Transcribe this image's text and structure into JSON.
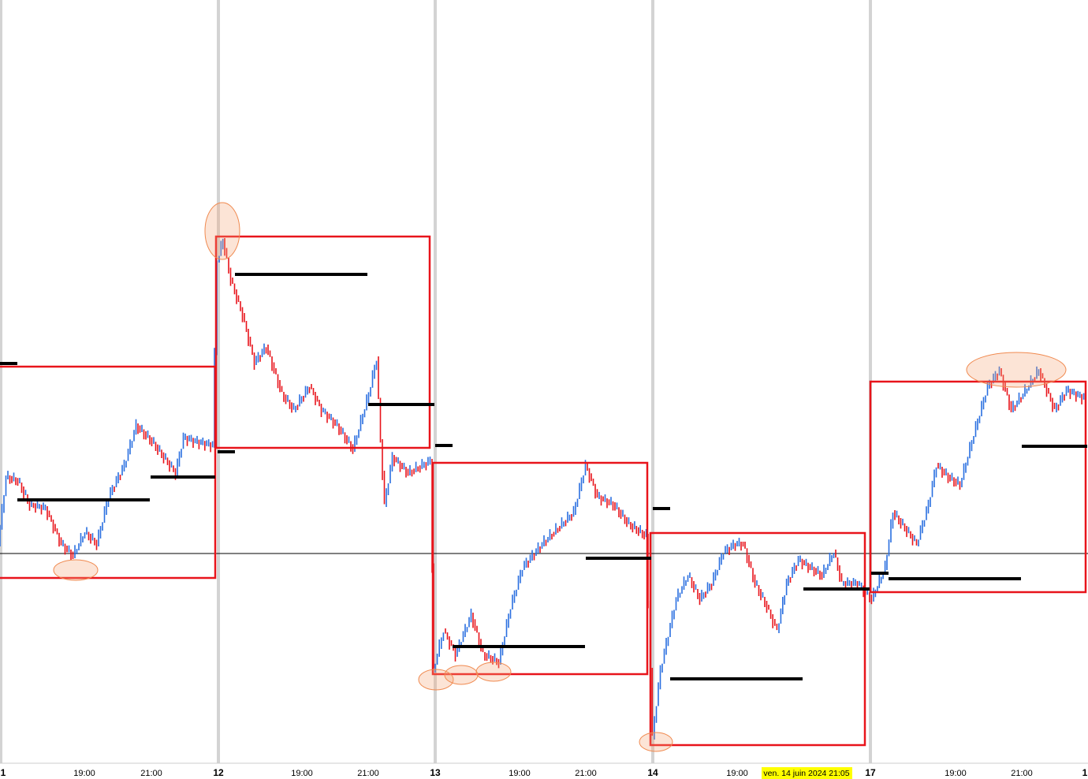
{
  "axis": {
    "labels": [
      "1",
      "19:00",
      "21:00",
      "12",
      "19:00",
      "21:00",
      "13",
      "19:00",
      "21:00",
      "14",
      "19:00",
      "17",
      "19:00",
      "21:00",
      "1"
    ]
  },
  "crosshair_label": "ven. 14 juin 2024 21:05"
}
